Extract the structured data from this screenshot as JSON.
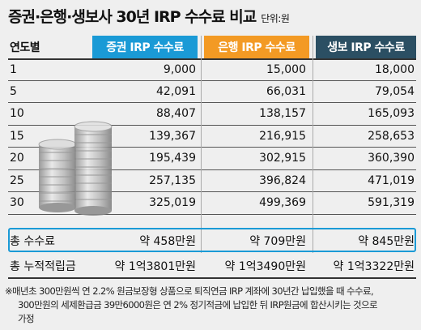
{
  "title": "증권·은행·생보사 30년 IRP 수수료 비교",
  "unit": "단위:원",
  "headers": [
    "연도별",
    "증권 IRP 수수료",
    "은행 IRP 수수료",
    "생보 IRP 수수료"
  ],
  "colors": {
    "securities": "#1a9ad6",
    "bank": "#f39a24",
    "life": "#2b4f63",
    "total_border": "#1a9ad6"
  },
  "rows": [
    {
      "year": "1",
      "securities": "9,000",
      "bank": "15,000",
      "life": "18,000"
    },
    {
      "year": "5",
      "securities": "42,091",
      "bank": "66,031",
      "life": "79,054"
    },
    {
      "year": "10",
      "securities": "88,407",
      "bank": "138,157",
      "life": "165,093"
    },
    {
      "year": "15",
      "securities": "139,367",
      "bank": "216,915",
      "life": "258,653"
    },
    {
      "year": "20",
      "securities": "195,439",
      "bank": "302,915",
      "life": "360,390"
    },
    {
      "year": "25",
      "securities": "257,135",
      "bank": "396,824",
      "life": "471,019"
    },
    {
      "year": "30",
      "securities": "325,019",
      "bank": "499,369",
      "life": "591,319"
    }
  ],
  "total": {
    "label": "총 수수료",
    "securities": "약 458만원",
    "bank": "약 709만원",
    "life": "약 845만원"
  },
  "accumulated": {
    "label": "총 누적적립금",
    "securities": "약 1억3801만원",
    "bank": "약 1억3490만원",
    "life": "약 1억3322만원"
  },
  "footnote": {
    "line1": "※매년초 300만원씩 연 2.2% 원금보장형 상품으로 퇴직연금 IRP 계좌에 30년간 납입했을 때 수수료,",
    "line2": "300만원의 세제환급금 39만6000원은 연 2% 정기적금에 납입한 뒤 IRP원금에 합산시키는 것으로",
    "line3": "가정"
  },
  "image": {
    "coins": "stack-of-coins-illustration"
  }
}
